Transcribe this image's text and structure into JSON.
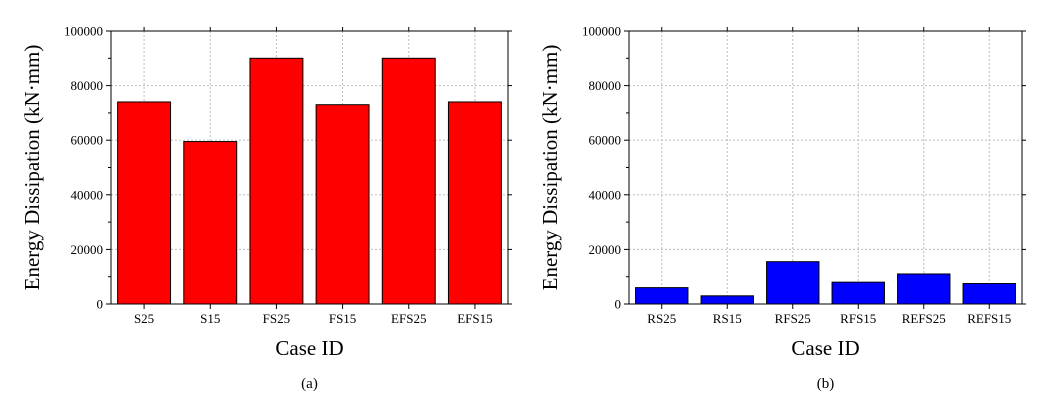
{
  "chart_data": [
    {
      "type": "bar",
      "caption": "(a)",
      "xlabel": "Case ID",
      "ylabel": "Energy Dissipation (kN·mm)",
      "ylim": [
        0,
        100000
      ],
      "yticks": [
        0,
        20000,
        40000,
        60000,
        80000,
        100000
      ],
      "grid": true,
      "color": "#ff0000",
      "categories": [
        "S25",
        "S15",
        "FS25",
        "FS15",
        "EFS25",
        "EFS15"
      ],
      "values": [
        74000,
        59500,
        90000,
        73000,
        90000,
        74000
      ]
    },
    {
      "type": "bar",
      "caption": "(b)",
      "xlabel": "Case ID",
      "ylabel": "Energy Dissipation (kN·mm)",
      "ylim": [
        0,
        100000
      ],
      "yticks": [
        0,
        20000,
        40000,
        60000,
        80000,
        100000
      ],
      "grid": true,
      "color": "#0000ff",
      "categories": [
        "RS25",
        "RS15",
        "RFS25",
        "RFS15",
        "REFS25",
        "REFS15"
      ],
      "values": [
        6000,
        3000,
        15500,
        8000,
        11000,
        7500
      ]
    }
  ]
}
